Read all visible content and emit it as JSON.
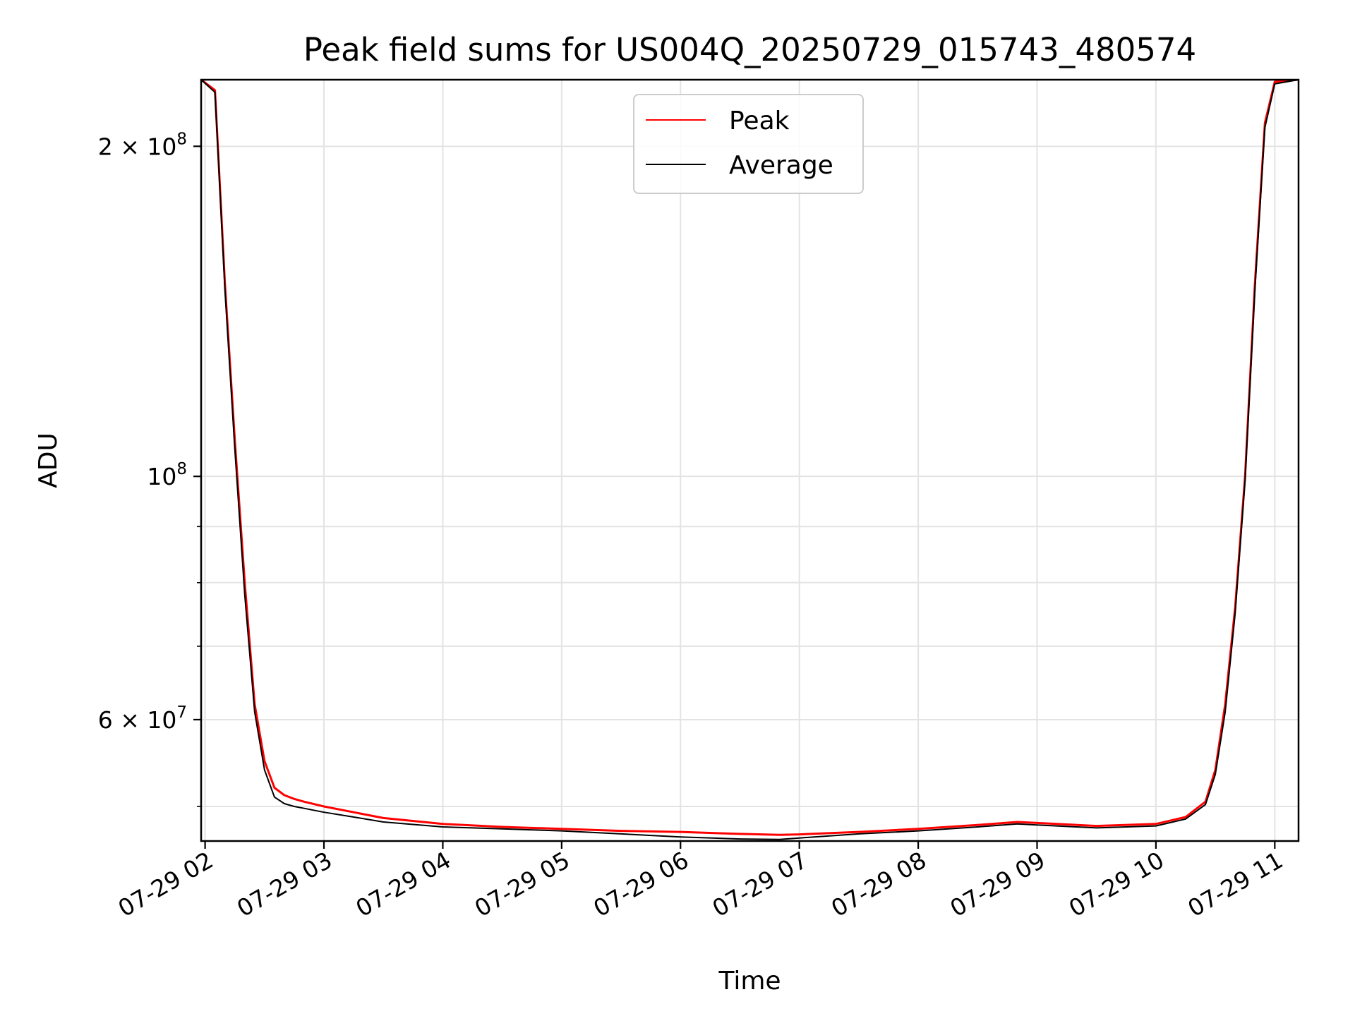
{
  "chart_data": {
    "type": "line",
    "title": "Peak field sums for US004Q_20250729_015743_480574",
    "xlabel": "Time",
    "ylabel": "ADU",
    "y_scale": "log",
    "grid": true,
    "legend_position": "top-center",
    "xlim": [
      "2025-07-29 01:58",
      "2025-07-29 11:12"
    ],
    "ylim": [
      46500000,
      230000000
    ],
    "x_ticks": [
      "2025-07-29 02:00",
      "2025-07-29 03:00",
      "2025-07-29 04:00",
      "2025-07-29 05:00",
      "2025-07-29 06:00",
      "2025-07-29 07:00",
      "2025-07-29 08:00",
      "2025-07-29 09:00",
      "2025-07-29 10:00",
      "2025-07-29 11:00"
    ],
    "x_tick_labels": [
      "07-29 02",
      "07-29 03",
      "07-29 04",
      "07-29 05",
      "07-29 06",
      "07-29 07",
      "07-29 08",
      "07-29 09",
      "07-29 10",
      "07-29 11"
    ],
    "y_major_ticks": [
      {
        "value": 60000000,
        "mantissa": "6",
        "exponent": "7"
      },
      {
        "value": 100000000,
        "mantissa": "",
        "exponent": "8"
      },
      {
        "value": 200000000,
        "mantissa": "2",
        "exponent": "8"
      }
    ],
    "y_minor_ticks": [
      50000000,
      70000000,
      80000000,
      90000000
    ],
    "series": [
      {
        "name": "Peak",
        "color": "#ff0000",
        "x": [
          "2025-07-29 01:58",
          "2025-07-29 02:05",
          "2025-07-29 02:10",
          "2025-07-29 02:15",
          "2025-07-29 02:20",
          "2025-07-29 02:25",
          "2025-07-29 02:30",
          "2025-07-29 02:35",
          "2025-07-29 02:40",
          "2025-07-29 02:45",
          "2025-07-29 02:50",
          "2025-07-29 03:00",
          "2025-07-29 03:15",
          "2025-07-29 03:30",
          "2025-07-29 04:00",
          "2025-07-29 04:30",
          "2025-07-29 05:00",
          "2025-07-29 05:30",
          "2025-07-29 06:00",
          "2025-07-29 06:30",
          "2025-07-29 06:50",
          "2025-07-29 07:00",
          "2025-07-29 07:30",
          "2025-07-29 08:00",
          "2025-07-29 08:30",
          "2025-07-29 08:50",
          "2025-07-29 09:00",
          "2025-07-29 09:30",
          "2025-07-29 10:00",
          "2025-07-29 10:15",
          "2025-07-29 10:25",
          "2025-07-29 10:30",
          "2025-07-29 10:35",
          "2025-07-29 10:40",
          "2025-07-29 10:45",
          "2025-07-29 10:50",
          "2025-07-29 10:55",
          "2025-07-29 11:00",
          "2025-07-29 11:12"
        ],
        "values": [
          230000000,
          225000000,
          150000000,
          108000000,
          80000000,
          62000000,
          55000000,
          52000000,
          51200000,
          50800000,
          50500000,
          50000000,
          49400000,
          48800000,
          48200000,
          47900000,
          47700000,
          47500000,
          47400000,
          47200000,
          47100000,
          47150000,
          47400000,
          47700000,
          48100000,
          48400000,
          48300000,
          48000000,
          48200000,
          48900000,
          50500000,
          54000000,
          62000000,
          76000000,
          100000000,
          150000000,
          210000000,
          229000000,
          230000000
        ]
      },
      {
        "name": "Average",
        "color": "#000000",
        "x": [
          "2025-07-29 01:58",
          "2025-07-29 02:05",
          "2025-07-29 02:10",
          "2025-07-29 02:15",
          "2025-07-29 02:20",
          "2025-07-29 02:25",
          "2025-07-29 02:30",
          "2025-07-29 02:35",
          "2025-07-29 02:40",
          "2025-07-29 02:45",
          "2025-07-29 02:50",
          "2025-07-29 03:00",
          "2025-07-29 03:15",
          "2025-07-29 03:30",
          "2025-07-29 04:00",
          "2025-07-29 04:30",
          "2025-07-29 05:00",
          "2025-07-29 05:30",
          "2025-07-29 06:00",
          "2025-07-29 06:30",
          "2025-07-29 06:50",
          "2025-07-29 07:00",
          "2025-07-29 07:30",
          "2025-07-29 08:00",
          "2025-07-29 08:30",
          "2025-07-29 08:50",
          "2025-07-29 09:00",
          "2025-07-29 09:30",
          "2025-07-29 10:00",
          "2025-07-29 10:15",
          "2025-07-29 10:25",
          "2025-07-29 10:30",
          "2025-07-29 10:35",
          "2025-07-29 10:40",
          "2025-07-29 10:45",
          "2025-07-29 10:50",
          "2025-07-29 10:55",
          "2025-07-29 11:00",
          "2025-07-29 11:12"
        ],
        "values": [
          230000000,
          224000000,
          148000000,
          106000000,
          78000000,
          61000000,
          54000000,
          51000000,
          50300000,
          50000000,
          49800000,
          49400000,
          48900000,
          48400000,
          47900000,
          47700000,
          47500000,
          47200000,
          46900000,
          46700000,
          46650000,
          46800000,
          47200000,
          47500000,
          47900000,
          48200000,
          48100000,
          47800000,
          48000000,
          48700000,
          50200000,
          53500000,
          61000000,
          75000000,
          99000000,
          148000000,
          208000000,
          228000000,
          230000000
        ]
      }
    ]
  }
}
